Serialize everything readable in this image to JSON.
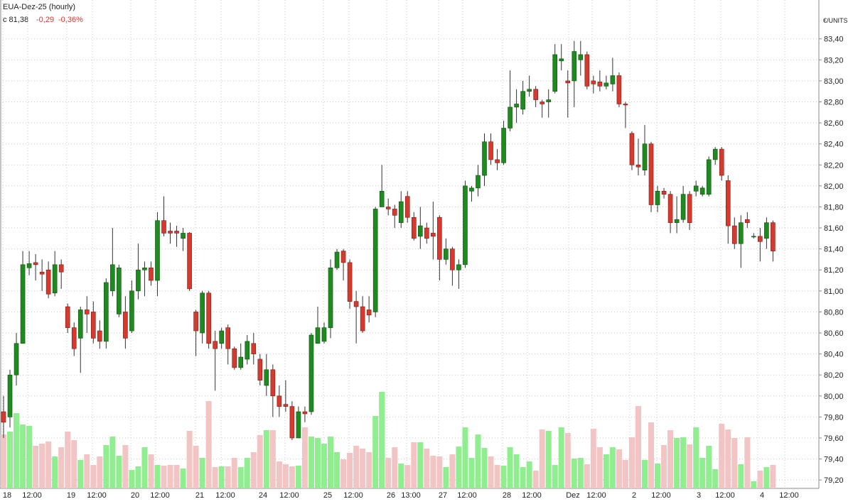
{
  "chart_data": {
    "type": "candlestick",
    "title": "EUA-Dez-25 (hourly)",
    "last_close": "c 81,38",
    "change": "-0,29",
    "change_pct": "-0,36%",
    "y_axis_label": "€/UNITS",
    "ylim": [
      79.12,
      83.77
    ],
    "yticks": [
      {
        "value": 79.2,
        "label": "79,20"
      },
      {
        "value": 79.4,
        "label": "79,40"
      },
      {
        "value": 79.6,
        "label": "79,60"
      },
      {
        "value": 79.8,
        "label": "79,80"
      },
      {
        "value": 80,
        "label": "80,00"
      },
      {
        "value": 80.2,
        "label": "80,20"
      },
      {
        "value": 80.4,
        "label": "80,40"
      },
      {
        "value": 80.6,
        "label": "80,60"
      },
      {
        "value": 80.8,
        "label": "80,80"
      },
      {
        "value": 81,
        "label": "81,00"
      },
      {
        "value": 81.2,
        "label": "81,20"
      },
      {
        "value": 81.4,
        "label": "81,40"
      },
      {
        "value": 81.6,
        "label": "81,60"
      },
      {
        "value": 81.8,
        "label": "81,80"
      },
      {
        "value": 82,
        "label": "82,00"
      },
      {
        "value": 82.2,
        "label": "82,20"
      },
      {
        "value": 82.4,
        "label": "82,40"
      },
      {
        "value": 82.6,
        "label": "82,60"
      },
      {
        "value": 82.8,
        "label": "82,80"
      },
      {
        "value": 83,
        "label": "83,00"
      },
      {
        "value": 83.2,
        "label": "83,20"
      },
      {
        "value": 83.4,
        "label": "83,40"
      }
    ],
    "xtick_labels": [
      "18",
      "12:00",
      "19",
      "12:00",
      "20",
      "12:00",
      "21",
      "12:00",
      "24",
      "12:00",
      "25",
      "12:00",
      "26",
      "13:00",
      "27",
      "12:00",
      "28",
      "12:00",
      "Dez",
      "12:00",
      "2",
      "12:00",
      "3",
      "12:00",
      "4",
      "12:00"
    ],
    "grid": true,
    "up_color": "#1f8a1f",
    "down_color": "#d63a2e",
    "volume_up_color": "#90ee90",
    "volume_down_color": "#f2c4c4",
    "open": [
      79.85,
      79.8,
      80.2,
      80.5,
      81.22,
      81.27,
      81.18,
      81.2,
      80.98,
      81.25,
      80.85,
      80.65,
      80.55,
      80.82,
      80.8,
      80.62,
      80.52,
      81.0,
      80.78,
      80.8,
      80.62,
      81.0,
      81.2,
      81.22,
      81.1,
      81.67,
      81.57,
      81.57,
      81.5,
      81.55,
      80.8,
      80.6,
      80.98,
      80.52,
      80.5,
      80.65,
      80.45,
      80.27,
      80.35,
      80.5,
      80.35,
      80.1,
      80.25,
      80.0,
      79.92,
      79.9,
      79.6,
      79.85,
      79.85,
      80.5,
      80.52,
      80.65,
      81.22,
      81.38,
      81.27,
      80.9,
      80.85,
      80.82,
      80.8,
      81.8,
      81.8,
      81.78,
      81.65,
      81.9,
      81.7,
      81.52,
      81.6,
      81.55,
      81.7,
      81.3,
      81.4,
      81.2,
      81.25,
      81.95,
      81.98,
      82.1,
      82.42,
      82.25,
      82.22,
      82.55,
      82.75,
      82.73,
      82.9,
      82.92,
      82.8,
      82.8,
      82.9,
      83.19,
      83.0,
      83.0,
      83.2,
      83.25,
      83.0,
      82.99,
      82.95,
      82.97,
      83.05,
      82.78,
      82.5,
      82.2,
      82.15,
      82.4,
      81.82,
      81.95,
      81.92,
      81.65,
      81.68,
      81.92,
      81.95,
      81.92,
      81.92,
      82.25,
      82.35,
      82.05,
      81.62,
      81.45,
      81.68,
      81.52,
      81.52,
      81.5,
      81.65
    ],
    "high": [
      80.0,
      80.25,
      80.6,
      81.38,
      81.38,
      81.35,
      81.3,
      81.28,
      81.38,
      81.3,
      80.88,
      80.7,
      80.85,
      80.95,
      80.9,
      80.72,
      81.12,
      81.6,
      81.25,
      80.95,
      81.1,
      81.45,
      81.28,
      81.28,
      81.75,
      81.9,
      81.65,
      81.62,
      81.6,
      81.56,
      80.82,
      81.0,
      81.0,
      80.62,
      80.65,
      80.68,
      80.47,
      80.5,
      80.58,
      80.6,
      80.4,
      80.4,
      80.3,
      80.1,
      80.15,
      79.95,
      79.9,
      79.9,
      80.6,
      80.85,
      80.7,
      81.3,
      81.4,
      81.4,
      81.3,
      81.0,
      80.95,
      80.95,
      81.8,
      82.2,
      81.88,
      81.82,
      81.95,
      81.95,
      81.75,
      81.8,
      81.65,
      81.85,
      81.72,
      81.5,
      81.42,
      81.3,
      82.05,
      82.0,
      82.2,
      82.5,
      82.5,
      82.35,
      82.62,
      83.1,
      82.92,
      83.0,
      83.05,
      82.95,
      82.82,
      82.92,
      83.35,
      83.35,
      83.1,
      83.38,
      83.38,
      83.28,
      83.05,
      83.1,
      83.05,
      83.22,
      83.08,
      82.8,
      82.52,
      82.45,
      82.58,
      82.42,
      82.0,
      81.98,
      81.95,
      81.9,
      82.0,
      81.95,
      82.05,
      82.0,
      82.28,
      82.37,
      82.37,
      82.1,
      81.7,
      81.72,
      81.75,
      81.55,
      81.6,
      81.7,
      81.67
    ],
    "low": [
      79.6,
      79.7,
      80.1,
      80.5,
      81.15,
      81.1,
      81.0,
      80.93,
      80.95,
      81.02,
      80.6,
      80.38,
      80.22,
      80.6,
      80.5,
      80.45,
      80.45,
      80.95,
      80.75,
      80.45,
      80.6,
      80.92,
      80.95,
      81.05,
      80.95,
      81.52,
      81.45,
      81.42,
      81.38,
      81.0,
      80.38,
      80.5,
      80.45,
      80.05,
      80.45,
      80.3,
      80.25,
      80.25,
      80.3,
      80.3,
      80.1,
      80.0,
      79.8,
      79.8,
      79.85,
      79.58,
      79.6,
      79.75,
      79.82,
      80.5,
      80.5,
      80.55,
      81.2,
      81.1,
      80.83,
      80.5,
      80.6,
      80.7,
      80.75,
      81.8,
      81.72,
      81.6,
      81.6,
      81.65,
      81.48,
      81.4,
      81.45,
      81.3,
      81.1,
      81.25,
      81.05,
      81.02,
      81.22,
      81.85,
      81.9,
      82.0,
      82.2,
      82.15,
      82.2,
      82.52,
      82.6,
      82.68,
      82.85,
      82.75,
      82.65,
      82.65,
      82.88,
      83.1,
      82.65,
      82.75,
      83.05,
      82.92,
      82.88,
      82.9,
      82.92,
      82.9,
      82.75,
      82.55,
      82.15,
      82.1,
      82.1,
      81.75,
      81.75,
      81.88,
      81.55,
      81.55,
      81.65,
      81.58,
      81.9,
      81.9,
      81.9,
      82.2,
      82.05,
      81.45,
      81.4,
      81.22,
      81.6,
      81.5,
      81.28,
      81.4,
      81.28
    ],
    "close": [
      79.75,
      80.2,
      80.5,
      81.25,
      81.26,
      81.25,
      81.16,
      80.97,
      81.25,
      81.18,
      80.65,
      80.45,
      80.82,
      80.78,
      80.55,
      80.52,
      81.08,
      81.25,
      81.22,
      80.55,
      81.0,
      81.2,
      81.22,
      81.1,
      81.67,
      81.55,
      81.55,
      81.55,
      81.55,
      81.02,
      80.62,
      80.98,
      80.5,
      80.45,
      80.62,
      80.45,
      80.27,
      80.37,
      80.52,
      80.4,
      80.15,
      80.25,
      80.0,
      79.9,
      79.9,
      79.6,
      79.85,
      79.83,
      80.58,
      80.65,
      80.65,
      81.22,
      81.37,
      81.27,
      80.9,
      80.85,
      80.62,
      80.77,
      81.78,
      81.95,
      81.78,
      81.72,
      81.85,
      81.7,
      81.5,
      81.62,
      81.5,
      81.52,
      81.3,
      81.4,
      81.2,
      81.25,
      82.0,
      81.98,
      82.1,
      82.42,
      82.25,
      82.22,
      82.55,
      82.75,
      82.78,
      82.9,
      82.92,
      82.82,
      82.78,
      82.82,
      83.25,
      83.21,
      82.98,
      83.28,
      83.25,
      82.95,
      82.97,
      82.95,
      82.98,
      83.05,
      82.78,
      82.77,
      82.2,
      82.18,
      82.4,
      81.82,
      81.95,
      81.92,
      81.65,
      81.68,
      81.92,
      81.65,
      82.0,
      81.98,
      82.25,
      82.35,
      82.1,
      81.62,
      81.45,
      81.65,
      81.65,
      81.52,
      81.47,
      81.65,
      81.38
    ],
    "volume": [
      76,
      80,
      106,
      90,
      88,
      60,
      63,
      66,
      45,
      58,
      80,
      68,
      40,
      48,
      33,
      45,
      61,
      73,
      46,
      61,
      26,
      31,
      58,
      48,
      33,
      32,
      33,
      33,
      28,
      81,
      60,
      43,
      123,
      30,
      31,
      31,
      43,
      30,
      43,
      51,
      75,
      82,
      82,
      38,
      34,
      31,
      32,
      86,
      73,
      71,
      63,
      73,
      51,
      41,
      50,
      60,
      56,
      51,
      102,
      136,
      43,
      58,
      35,
      33,
      65,
      65,
      56,
      46,
      45,
      30,
      48,
      59,
      86,
      43,
      76,
      57,
      45,
      33,
      32,
      58,
      48,
      30,
      38,
      25,
      83,
      81,
      33,
      86,
      78,
      42,
      43,
      34,
      84,
      58,
      48,
      58,
      55,
      40,
      72,
      116,
      40,
      93,
      35,
      61,
      82,
      71,
      72,
      62,
      86,
      43,
      60,
      27,
      91,
      83,
      71,
      34,
      72,
      10,
      25,
      30,
      33
    ]
  }
}
